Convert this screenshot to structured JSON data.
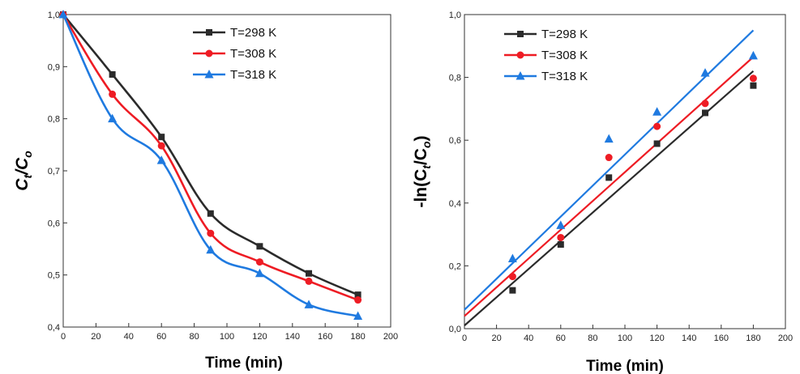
{
  "chart_data": [
    {
      "type": "line",
      "xlabel": "Time (min)",
      "ylabel": "Ct/Co",
      "ylabel_parts": {
        "main1": "C",
        "sub1": "t",
        "mid": "/C",
        "sub2": "o"
      },
      "xlim": [
        0,
        200
      ],
      "ylim": [
        0.4,
        1.0
      ],
      "xticks": [
        "0",
        "20",
        "40",
        "60",
        "80",
        "100",
        "120",
        "140",
        "160",
        "180",
        "200"
      ],
      "yticks": [
        "0,4",
        "0,5",
        "0,6",
        "0,7",
        "0,8",
        "0,9",
        "1,0"
      ],
      "grid": false,
      "legend_position": "top-right",
      "x": [
        0,
        30,
        60,
        90,
        120,
        150,
        180
      ],
      "series": [
        {
          "name": "T=298 K",
          "color": "#2b2b2b",
          "marker": "square",
          "values": [
            1.0,
            0.885,
            0.765,
            0.618,
            0.555,
            0.503,
            0.462
          ]
        },
        {
          "name": "T=308 K",
          "color": "#ee1c24",
          "marker": "circle",
          "values": [
            1.0,
            0.847,
            0.748,
            0.58,
            0.525,
            0.488,
            0.452
          ]
        },
        {
          "name": "T=318 K",
          "color": "#1f7ae0",
          "marker": "triangle",
          "values": [
            1.0,
            0.8,
            0.72,
            0.548,
            0.503,
            0.443,
            0.421
          ]
        }
      ]
    },
    {
      "type": "scatter",
      "xlabel": "Time (min)",
      "ylabel": "-ln(Ct/Co)",
      "ylabel_parts": {
        "main1": "-ln(C",
        "sub1": "t",
        "mid": "/C",
        "sub2": "o",
        "end": ")"
      },
      "xlim": [
        0,
        200
      ],
      "ylim": [
        0.0,
        1.0
      ],
      "xticks": [
        "0",
        "20",
        "40",
        "60",
        "80",
        "100",
        "120",
        "140",
        "160",
        "180",
        "200"
      ],
      "yticks": [
        "0,0",
        "0,2",
        "0,4",
        "0,6",
        "0,8",
        "1,0"
      ],
      "grid": false,
      "legend_position": "top-left",
      "x": [
        30,
        60,
        90,
        120,
        150,
        180
      ],
      "series": [
        {
          "name": "T=298 K",
          "color": "#2b2b2b",
          "marker": "square",
          "values": [
            0.122,
            0.268,
            0.481,
            0.589,
            0.687,
            0.774
          ],
          "fit": [
            0.01,
            0.82
          ]
        },
        {
          "name": "T=308 K",
          "color": "#ee1c24",
          "marker": "circle",
          "values": [
            0.166,
            0.29,
            0.545,
            0.644,
            0.717,
            0.797
          ],
          "fit": [
            0.04,
            0.865
          ]
        },
        {
          "name": "T=318 K",
          "color": "#1f7ae0",
          "marker": "triangle",
          "values": [
            0.223,
            0.329,
            0.604,
            0.69,
            0.814,
            0.869
          ],
          "fit": [
            0.06,
            0.95
          ]
        }
      ]
    }
  ]
}
